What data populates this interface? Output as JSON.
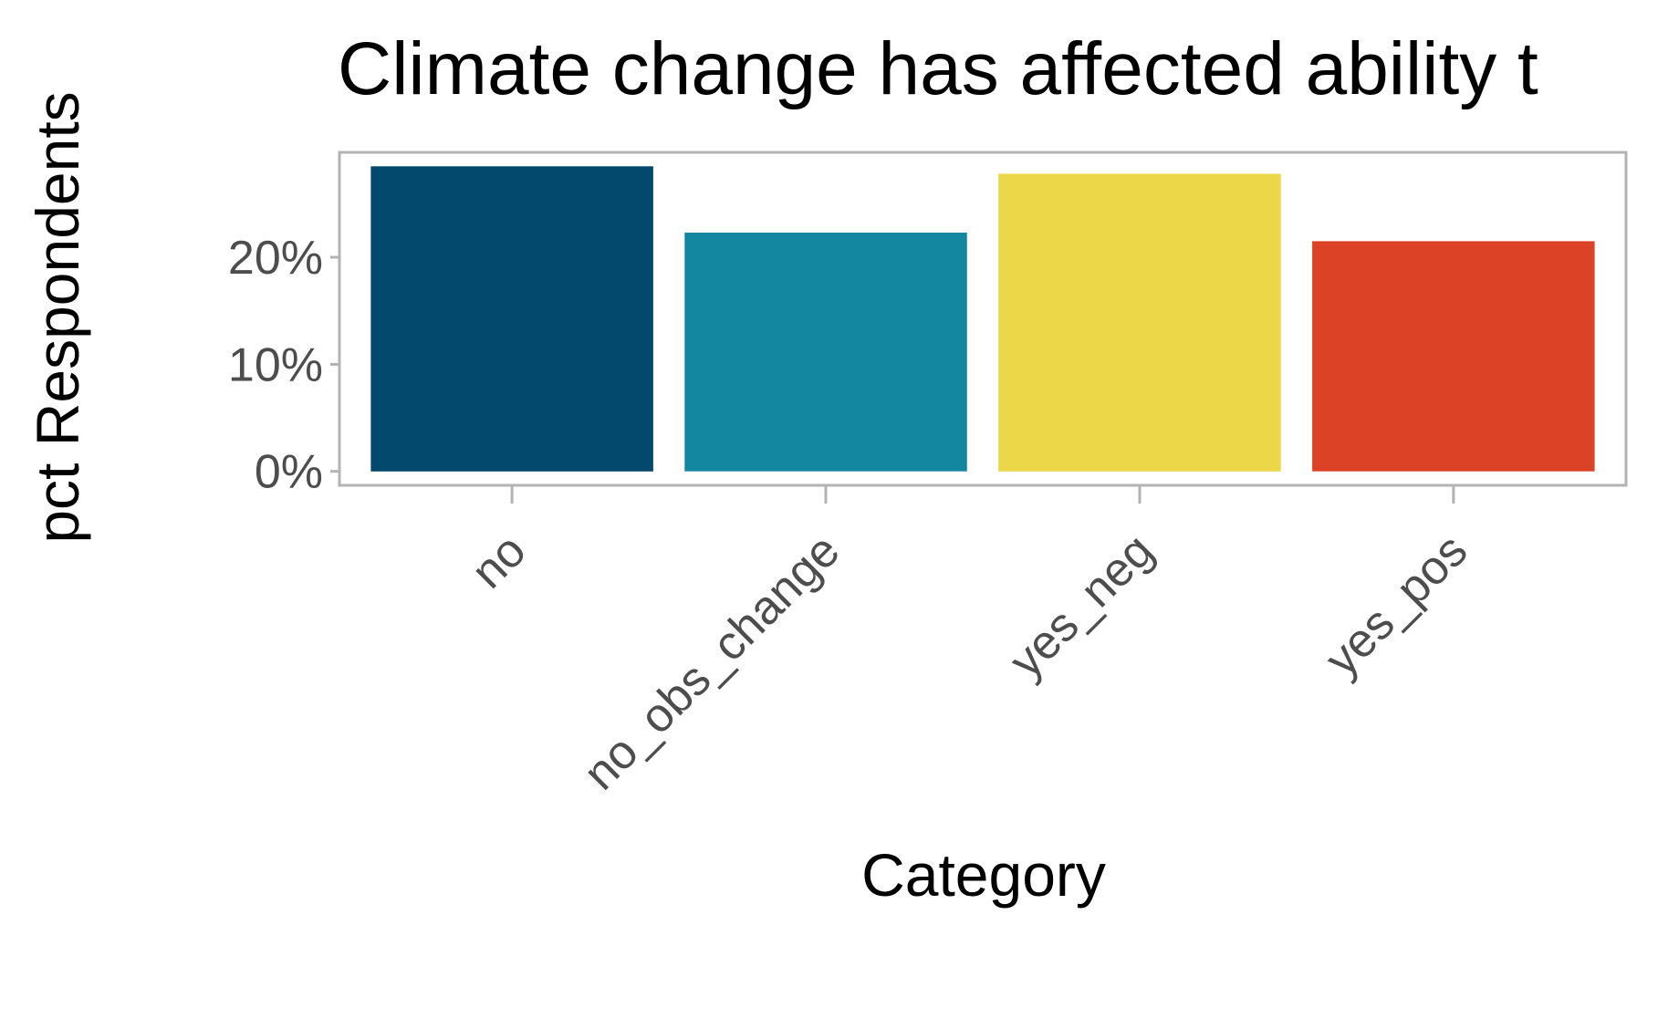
{
  "chart_data": {
    "type": "bar",
    "title": "Climate change has affected ability t",
    "xlabel": "Category",
    "ylabel": "pct Respondents",
    "categories": [
      "no",
      "no_obs_change",
      "yes_neg",
      "yes_pos"
    ],
    "values": [
      28.5,
      22.3,
      27.8,
      21.5
    ],
    "value_unit": "percent",
    "colors": [
      "#02496d",
      "#1386a0",
      "#ebd747",
      "#dc4226"
    ],
    "ylim": [
      -1.3,
      29.8
    ],
    "yticks": [
      0,
      10,
      20
    ],
    "ytick_labels": [
      "0%",
      "10%",
      "20%"
    ],
    "grid": false,
    "legend": false,
    "frame_color": "#b3b3b3"
  }
}
